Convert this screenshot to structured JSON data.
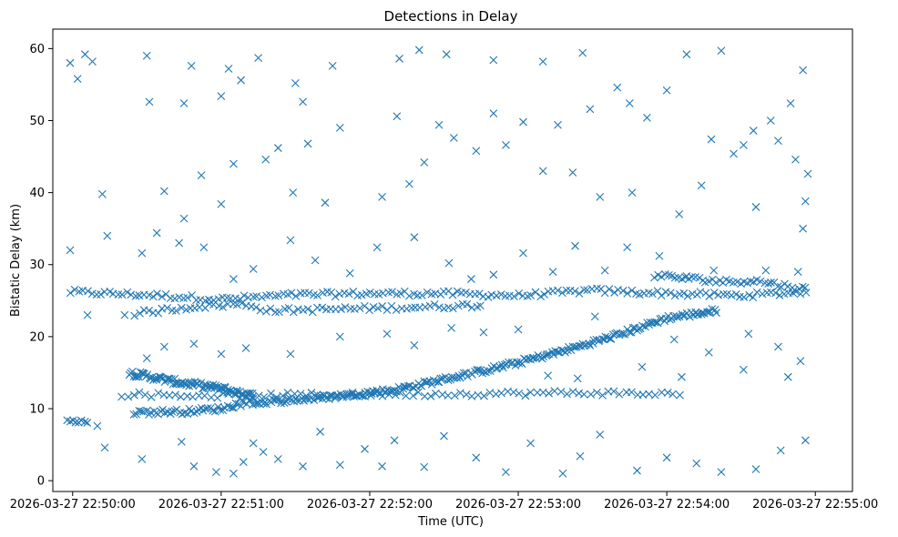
{
  "chart_data": {
    "type": "scatter",
    "title": "Detections in Delay",
    "xlabel": "Time (UTC)",
    "ylabel": "Bistatic Delay (km)",
    "marker": "x",
    "color": "#1f77b4",
    "grid": false,
    "legend": "none",
    "xlim": [
      "2026-03-27 22:49:52",
      "2026-03-27 22:55:15"
    ],
    "ylim": [
      -1.5,
      62.7
    ],
    "xticks": [
      "2026-03-27 22:50:00",
      "2026-03-27 22:51:00",
      "2026-03-27 22:52:00",
      "2026-03-27 22:53:00",
      "2026-03-27 22:54:00",
      "2026-03-27 22:55:00"
    ],
    "yticks": [
      0,
      10,
      20,
      30,
      40,
      50,
      60
    ],
    "tracks": [
      {
        "name": "band-26km",
        "points": [
          [
            "2026-03-27 22:49:59",
            26.2
          ],
          [
            "2026-03-27 22:50:30",
            25.8
          ],
          [
            "2026-03-27 22:51:00",
            25.2
          ],
          [
            "2026-03-27 22:51:30",
            25.8
          ],
          [
            "2026-03-27 22:52:00",
            26.0
          ],
          [
            "2026-03-27 22:52:30",
            26.0
          ],
          [
            "2026-03-27 22:53:00",
            25.7
          ],
          [
            "2026-03-27 22:53:30",
            26.4
          ],
          [
            "2026-03-27 22:54:00",
            26.0
          ],
          [
            "2026-03-27 22:54:30",
            25.7
          ],
          [
            "2026-03-27 22:54:56",
            26.2
          ]
        ],
        "count": 170,
        "jitter": 0.35
      },
      {
        "name": "band-24km",
        "points": [
          [
            "2026-03-27 22:50:25",
            23.2
          ],
          [
            "2026-03-27 22:50:50",
            24.2
          ],
          [
            "2026-03-27 22:51:10",
            24.5
          ],
          [
            "2026-03-27 22:51:20",
            23.6
          ],
          [
            "2026-03-27 22:52:30",
            24.2
          ],
          [
            "2026-03-27 22:52:45",
            24.4
          ]
        ],
        "count": 75,
        "jitter": 0.35
      },
      {
        "name": "descending-track",
        "points": [
          [
            "2026-03-27 22:50:23",
            15.0
          ],
          [
            "2026-03-27 22:50:40",
            13.8
          ],
          [
            "2026-03-27 22:51:00",
            12.8
          ],
          [
            "2026-03-27 22:51:13",
            11.7
          ]
        ],
        "count": 90,
        "jitter": 0.4
      },
      {
        "name": "ascending-track",
        "points": [
          [
            "2026-03-27 22:51:13",
            10.8
          ],
          [
            "2026-03-27 22:51:40",
            11.5
          ],
          [
            "2026-03-27 22:52:10",
            12.6
          ],
          [
            "2026-03-27 22:52:40",
            14.8
          ],
          [
            "2026-03-27 22:53:00",
            16.4
          ],
          [
            "2026-03-27 22:53:20",
            18.2
          ],
          [
            "2026-03-27 22:53:40",
            20.2
          ],
          [
            "2026-03-27 22:54:00",
            22.6
          ],
          [
            "2026-03-27 22:54:20",
            23.6
          ]
        ],
        "count": 240,
        "jitter": 0.35
      },
      {
        "name": "lower-track",
        "points": [
          [
            "2026-03-27 22:50:25",
            9.5
          ],
          [
            "2026-03-27 22:50:45",
            9.6
          ],
          [
            "2026-03-27 22:51:00",
            10.0
          ],
          [
            "2026-03-27 22:51:12",
            11.0
          ]
        ],
        "count": 50,
        "jitter": 0.35
      },
      {
        "name": "band-12km",
        "points": [
          [
            "2026-03-27 22:50:20",
            12.0
          ],
          [
            "2026-03-27 22:50:55",
            11.8
          ],
          [
            "2026-03-27 22:53:30",
            12.2
          ],
          [
            "2026-03-27 22:54:05",
            12.0
          ]
        ],
        "count": 95,
        "jitter": 0.35
      },
      {
        "name": "band-28km",
        "points": [
          [
            "2026-03-27 22:53:55",
            28.5
          ],
          [
            "2026-03-27 22:54:25",
            27.6
          ],
          [
            "2026-03-27 22:54:35",
            27.8
          ],
          [
            "2026-03-27 22:54:56",
            26.6
          ]
        ],
        "count": 45,
        "jitter": 0.35
      },
      {
        "name": "band-8km",
        "points": [
          [
            "2026-03-27 22:49:58",
            8.3
          ],
          [
            "2026-03-27 22:50:06",
            8.2
          ]
        ],
        "count": 8,
        "jitter": 0.2
      }
    ],
    "scatter_points": [
      [
        "2026-03-27 22:49:59",
        58.0
      ],
      [
        "2026-03-27 22:50:02",
        55.8
      ],
      [
        "2026-03-27 22:50:05",
        59.2
      ],
      [
        "2026-03-27 22:50:08",
        58.2
      ],
      [
        "2026-03-27 22:50:30",
        59.0
      ],
      [
        "2026-03-27 22:50:31",
        52.6
      ],
      [
        "2026-03-27 22:50:45",
        52.4
      ],
      [
        "2026-03-27 22:50:48",
        57.6
      ],
      [
        "2026-03-27 22:51:00",
        53.4
      ],
      [
        "2026-03-27 22:51:03",
        57.2
      ],
      [
        "2026-03-27 22:51:08",
        55.6
      ],
      [
        "2026-03-27 22:51:15",
        58.7
      ],
      [
        "2026-03-27 22:51:30",
        55.2
      ],
      [
        "2026-03-27 22:51:33",
        52.6
      ],
      [
        "2026-03-27 22:51:45",
        57.6
      ],
      [
        "2026-03-27 22:52:12",
        58.6
      ],
      [
        "2026-03-27 22:52:20",
        59.8
      ],
      [
        "2026-03-27 22:52:31",
        59.2
      ],
      [
        "2026-03-27 22:52:50",
        58.4
      ],
      [
        "2026-03-27 22:53:10",
        58.2
      ],
      [
        "2026-03-27 22:53:26",
        59.4
      ],
      [
        "2026-03-27 22:53:45",
        52.4
      ],
      [
        "2026-03-27 22:54:08",
        59.2
      ],
      [
        "2026-03-27 22:54:22",
        59.7
      ],
      [
        "2026-03-27 22:54:35",
        48.6
      ],
      [
        "2026-03-27 22:54:42",
        50.0
      ],
      [
        "2026-03-27 22:54:55",
        57.0
      ],
      [
        "2026-03-27 22:54:50",
        52.4
      ],
      [
        "2026-03-27 22:50:12",
        39.8
      ],
      [
        "2026-03-27 22:50:28",
        31.6
      ],
      [
        "2026-03-27 22:50:37",
        40.2
      ],
      [
        "2026-03-27 22:50:45",
        36.4
      ],
      [
        "2026-03-27 22:50:52",
        42.4
      ],
      [
        "2026-03-27 22:51:00",
        38.4
      ],
      [
        "2026-03-27 22:51:05",
        44.0
      ],
      [
        "2026-03-27 22:51:18",
        44.6
      ],
      [
        "2026-03-27 22:51:23",
        46.2
      ],
      [
        "2026-03-27 22:51:29",
        40.0
      ],
      [
        "2026-03-27 22:51:35",
        46.8
      ],
      [
        "2026-03-27 22:51:42",
        38.6
      ],
      [
        "2026-03-27 22:51:48",
        49.0
      ],
      [
        "2026-03-27 22:52:05",
        39.4
      ],
      [
        "2026-03-27 22:52:11",
        50.6
      ],
      [
        "2026-03-27 22:52:16",
        41.2
      ],
      [
        "2026-03-27 22:52:22",
        44.2
      ],
      [
        "2026-03-27 22:52:28",
        49.4
      ],
      [
        "2026-03-27 22:52:34",
        47.6
      ],
      [
        "2026-03-27 22:52:43",
        45.8
      ],
      [
        "2026-03-27 22:52:50",
        51.0
      ],
      [
        "2026-03-27 22:52:55",
        46.6
      ],
      [
        "2026-03-27 22:53:02",
        49.8
      ],
      [
        "2026-03-27 22:53:10",
        43.0
      ],
      [
        "2026-03-27 22:53:16",
        49.4
      ],
      [
        "2026-03-27 22:53:22",
        42.8
      ],
      [
        "2026-03-27 22:53:29",
        51.6
      ],
      [
        "2026-03-27 22:53:33",
        39.4
      ],
      [
        "2026-03-27 22:53:40",
        54.6
      ],
      [
        "2026-03-27 22:53:46",
        40.0
      ],
      [
        "2026-03-27 22:53:52",
        50.4
      ],
      [
        "2026-03-27 22:54:00",
        54.2
      ],
      [
        "2026-03-27 22:54:05",
        37.0
      ],
      [
        "2026-03-27 22:54:14",
        41.0
      ],
      [
        "2026-03-27 22:54:18",
        47.4
      ],
      [
        "2026-03-27 22:54:27",
        45.4
      ],
      [
        "2026-03-27 22:54:31",
        46.6
      ],
      [
        "2026-03-27 22:54:36",
        38.0
      ],
      [
        "2026-03-27 22:54:45",
        47.2
      ],
      [
        "2026-03-27 22:54:52",
        44.6
      ],
      [
        "2026-03-27 22:54:57",
        42.6
      ],
      [
        "2026-03-27 22:54:56",
        38.8
      ],
      [
        "2026-03-27 22:54:55",
        35.0
      ],
      [
        "2026-03-27 22:49:59",
        32.0
      ],
      [
        "2026-03-27 22:50:06",
        23.0
      ],
      [
        "2026-03-27 22:50:14",
        34.0
      ],
      [
        "2026-03-27 22:50:21",
        23.0
      ],
      [
        "2026-03-27 22:50:34",
        34.4
      ],
      [
        "2026-03-27 22:50:43",
        33.0
      ],
      [
        "2026-03-27 22:50:53",
        32.4
      ],
      [
        "2026-03-27 22:51:05",
        28.0
      ],
      [
        "2026-03-27 22:51:13",
        29.4
      ],
      [
        "2026-03-27 22:51:28",
        33.4
      ],
      [
        "2026-03-27 22:51:38",
        30.6
      ],
      [
        "2026-03-27 22:51:52",
        28.8
      ],
      [
        "2026-03-27 22:52:03",
        32.4
      ],
      [
        "2026-03-27 22:52:18",
        33.8
      ],
      [
        "2026-03-27 22:52:32",
        30.2
      ],
      [
        "2026-03-27 22:52:41",
        28.0
      ],
      [
        "2026-03-27 22:52:50",
        28.6
      ],
      [
        "2026-03-27 22:53:02",
        31.6
      ],
      [
        "2026-03-27 22:53:14",
        29.0
      ],
      [
        "2026-03-27 22:53:23",
        32.6
      ],
      [
        "2026-03-27 22:53:35",
        29.2
      ],
      [
        "2026-03-27 22:53:44",
        32.4
      ],
      [
        "2026-03-27 22:53:57",
        31.2
      ],
      [
        "2026-03-27 22:54:19",
        29.2
      ],
      [
        "2026-03-27 22:54:40",
        29.2
      ],
      [
        "2026-03-27 22:54:53",
        29.0
      ],
      [
        "2026-03-27 22:54:08",
        28.4
      ],
      [
        "2026-03-27 22:50:10",
        7.6
      ],
      [
        "2026-03-27 22:50:13",
        4.6
      ],
      [
        "2026-03-27 22:50:28",
        3.0
      ],
      [
        "2026-03-27 22:50:44",
        5.4
      ],
      [
        "2026-03-27 22:50:49",
        2.0
      ],
      [
        "2026-03-27 22:50:58",
        1.2
      ],
      [
        "2026-03-27 22:51:05",
        1.0
      ],
      [
        "2026-03-27 22:51:09",
        2.6
      ],
      [
        "2026-03-27 22:51:13",
        5.2
      ],
      [
        "2026-03-27 22:51:17",
        4.0
      ],
      [
        "2026-03-27 22:51:23",
        3.0
      ],
      [
        "2026-03-27 22:51:33",
        2.0
      ],
      [
        "2026-03-27 22:51:40",
        6.8
      ],
      [
        "2026-03-27 22:51:48",
        2.2
      ],
      [
        "2026-03-27 22:51:58",
        4.4
      ],
      [
        "2026-03-27 22:52:05",
        2.0
      ],
      [
        "2026-03-27 22:52:10",
        5.6
      ],
      [
        "2026-03-27 22:52:22",
        1.9
      ],
      [
        "2026-03-27 22:52:30",
        6.2
      ],
      [
        "2026-03-27 22:52:43",
        3.2
      ],
      [
        "2026-03-27 22:52:55",
        1.2
      ],
      [
        "2026-03-27 22:53:05",
        5.2
      ],
      [
        "2026-03-27 22:53:18",
        1.0
      ],
      [
        "2026-03-27 22:53:25",
        3.4
      ],
      [
        "2026-03-27 22:53:33",
        6.4
      ],
      [
        "2026-03-27 22:53:48",
        1.4
      ],
      [
        "2026-03-27 22:54:00",
        3.2
      ],
      [
        "2026-03-27 22:54:12",
        2.4
      ],
      [
        "2026-03-27 22:54:22",
        1.2
      ],
      [
        "2026-03-27 22:54:36",
        1.6
      ],
      [
        "2026-03-27 22:54:46",
        4.2
      ],
      [
        "2026-03-27 22:54:56",
        5.6
      ],
      [
        "2026-03-27 22:50:30",
        17.0
      ],
      [
        "2026-03-27 22:50:37",
        18.6
      ],
      [
        "2026-03-27 22:50:49",
        19.0
      ],
      [
        "2026-03-27 22:51:00",
        17.6
      ],
      [
        "2026-03-27 22:51:10",
        18.4
      ],
      [
        "2026-03-27 22:51:28",
        17.6
      ],
      [
        "2026-03-27 22:51:48",
        20.0
      ],
      [
        "2026-03-27 22:52:07",
        20.4
      ],
      [
        "2026-03-27 22:52:18",
        18.8
      ],
      [
        "2026-03-27 22:52:33",
        21.2
      ],
      [
        "2026-03-27 22:52:46",
        20.6
      ],
      [
        "2026-03-27 22:53:00",
        21.0
      ],
      [
        "2026-03-27 22:53:31",
        22.8
      ],
      [
        "2026-03-27 22:54:03",
        19.6
      ],
      [
        "2026-03-27 22:54:17",
        17.8
      ],
      [
        "2026-03-27 22:54:33",
        20.4
      ],
      [
        "2026-03-27 22:54:45",
        18.6
      ],
      [
        "2026-03-27 22:54:54",
        16.6
      ],
      [
        "2026-03-27 22:53:12",
        14.6
      ],
      [
        "2026-03-27 22:53:24",
        14.2
      ],
      [
        "2026-03-27 22:53:50",
        15.8
      ],
      [
        "2026-03-27 22:54:06",
        14.4
      ],
      [
        "2026-03-27 22:54:31",
        15.4
      ],
      [
        "2026-03-27 22:54:49",
        14.4
      ]
    ]
  }
}
